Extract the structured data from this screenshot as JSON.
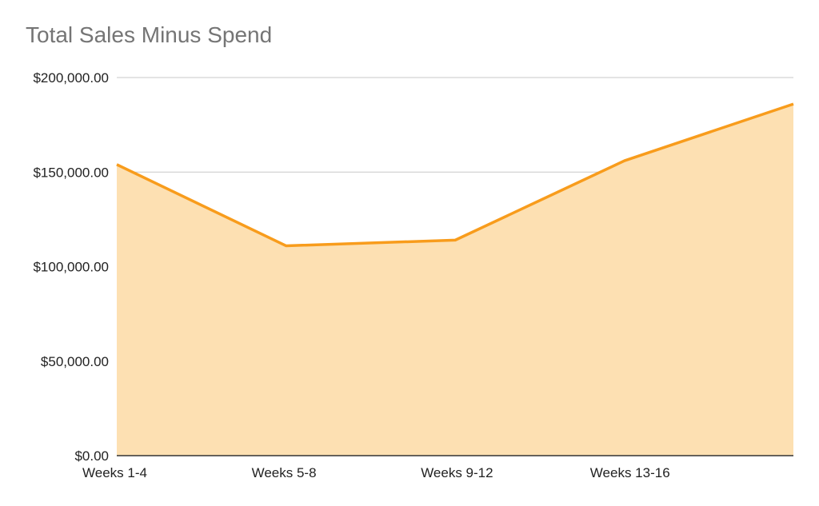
{
  "chart_data": {
    "type": "area",
    "title": "Total Sales Minus Spend",
    "xlabel": "",
    "ylabel": "",
    "x_tick_labels": [
      "Weeks 1-4",
      "Weeks 5-8",
      "Weeks 9-12",
      "Weeks 13-16"
    ],
    "y_tick_labels": [
      "$0.00",
      "$50,000.00",
      "$100,000.00",
      "$150,000.00",
      "$200,000.00"
    ],
    "y_ticks": [
      0,
      50000,
      100000,
      150000,
      200000
    ],
    "ylim": [
      0,
      200000
    ],
    "series": [
      {
        "values": [
          154000,
          111000,
          114000,
          156000,
          186000
        ],
        "color": "#f89c1c",
        "fill": "#fde0b2"
      }
    ],
    "grid": true,
    "legend": "none"
  }
}
